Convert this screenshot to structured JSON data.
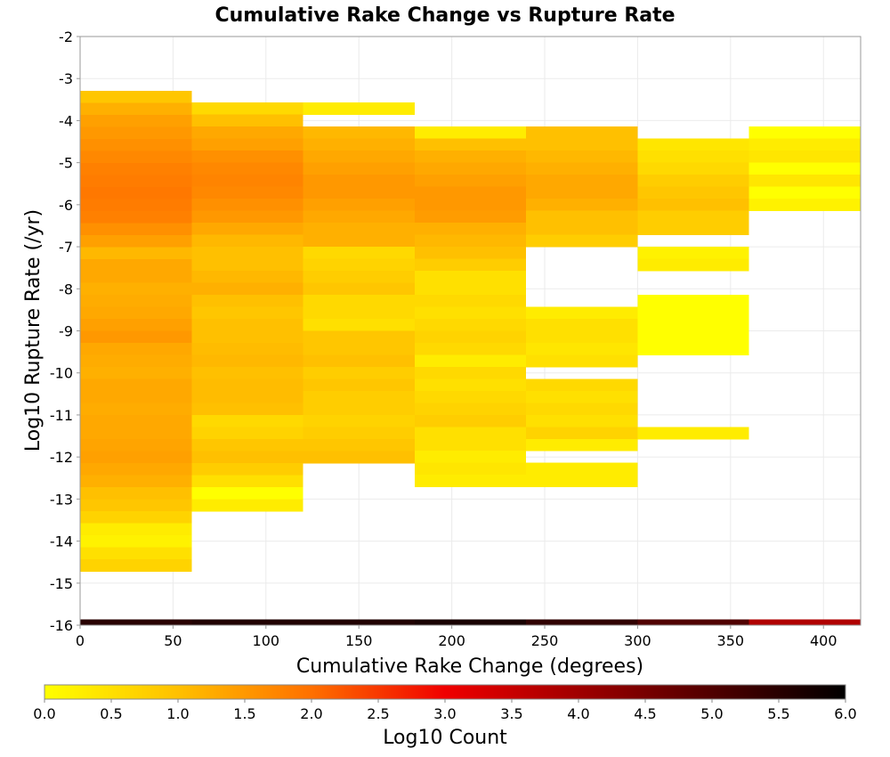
{
  "chart_data": {
    "type": "heatmap",
    "title": "Cumulative Rake Change vs Rupture Rate",
    "xlabel": "Cumulative Rake Change (degrees)",
    "ylabel": "Log10 Rupture Rate (/yr)",
    "xlim": [
      0,
      420
    ],
    "ylim": [
      -16,
      -2
    ],
    "xticks": [
      "0",
      "50",
      "100",
      "150",
      "200",
      "250",
      "300",
      "350",
      "400"
    ],
    "yticks": [
      "-2",
      "-3",
      "-4",
      "-5",
      "-6",
      "-7",
      "-8",
      "-9",
      "-10",
      "-11",
      "-12",
      "-13",
      "-14",
      "-15",
      "-16"
    ],
    "grid": true,
    "x_bin_width": 60,
    "y_bin_height": 0.2857,
    "colorbar": {
      "label": "Log10 Count",
      "range": [
        0,
        6
      ],
      "ticks": [
        "0.0",
        "0.5",
        "1.0",
        "1.5",
        "2.0",
        "2.5",
        "3.0",
        "3.5",
        "4.0",
        "4.5",
        "5.0",
        "5.5",
        "6.0"
      ],
      "colors": [
        "#ffff00",
        "#ffc000",
        "#ff7000",
        "#f00000",
        "#a00000",
        "#500000",
        "#000000"
      ]
    },
    "cells": [
      {
        "x0": 0,
        "y_top": -3.29,
        "values": [
          0.9,
          1.2,
          1.4,
          1.5,
          1.6,
          1.7,
          1.8,
          1.85,
          1.9,
          1.85,
          1.8,
          1.6,
          1.4,
          1.1,
          1.3,
          1.3,
          1.2,
          1.25,
          1.3,
          1.4,
          1.5,
          1.3,
          1.25,
          1.2,
          1.3,
          1.3,
          1.25,
          1.3,
          1.3,
          1.35,
          1.4,
          1.3,
          1.2,
          1.0,
          0.9,
          0.7,
          0.3,
          0.2,
          0.5,
          0.7
        ]
      },
      {
        "x0": 60,
        "y_top": -3.57,
        "values": [
          0.6,
          1.0,
          1.3,
          1.4,
          1.6,
          1.7,
          1.75,
          1.7,
          1.6,
          1.5,
          1.3,
          1.1,
          1.0,
          1.0,
          1.1,
          1.2,
          1.0,
          0.9,
          1.0,
          1.0,
          1.05,
          1.1,
          1.0,
          1.05,
          1.05,
          1.0,
          0.6,
          0.7,
          0.9,
          1.0,
          0.8,
          0.5,
          0.0,
          0.3
        ]
      },
      {
        "x0": 120,
        "y_top": -3.57,
        "values": [
          0.3,
          null,
          1.1,
          1.2,
          1.3,
          1.4,
          1.5,
          1.5,
          1.4,
          1.3,
          1.2,
          1.2,
          0.6,
          0.7,
          0.8,
          0.9,
          0.6,
          0.6,
          0.5,
          0.9,
          0.9,
          1.0,
          0.8,
          0.9,
          0.8,
          0.8,
          0.7,
          0.8,
          0.9,
          1.0
        ]
      },
      {
        "x0": 180,
        "y_top": -4.14,
        "values": [
          0.3,
          1.0,
          1.2,
          1.3,
          1.4,
          1.5,
          1.5,
          1.45,
          1.2,
          1.1,
          1.0,
          0.8,
          0.5,
          0.5,
          0.6,
          0.5,
          0.6,
          0.7,
          0.6,
          0.3,
          0.6,
          0.5,
          0.6,
          0.7,
          0.8,
          0.5,
          0.5,
          0.3,
          0.4,
          0.3
        ]
      },
      {
        "x0": 240,
        "y_top": -4.14,
        "values": [
          1.0,
          1.0,
          1.1,
          1.2,
          1.3,
          1.3,
          1.2,
          1.0,
          1.0,
          0.8,
          null,
          null,
          null,
          null,
          null,
          0.3,
          0.5,
          0.5,
          0.4,
          0.5,
          null,
          0.6,
          0.5,
          0.6,
          0.5,
          0.7,
          0.3,
          null,
          0.3,
          0.3
        ]
      },
      {
        "x0": 300,
        "y_top": -4.43,
        "values": [
          0.4,
          0.5,
          0.6,
          0.8,
          0.9,
          1.0,
          0.8,
          0.8,
          null,
          0.2,
          0.3,
          null,
          null,
          0.0,
          0.0,
          0.0,
          0.0,
          0.0,
          null,
          null,
          null,
          null,
          null,
          null,
          0.3
        ]
      },
      {
        "x0": 360,
        "y_top": -4.14,
        "values": [
          0.0,
          0.3,
          0.4,
          0.0,
          0.4,
          0.0,
          0.2
        ]
      },
      {
        "x0": 0,
        "y_top": -15.86,
        "values": [
          5.5
        ],
        "row": "bottom"
      },
      {
        "x0": 60,
        "y_top": -15.86,
        "values": [
          5.6
        ],
        "row": "bottom"
      },
      {
        "x0": 120,
        "y_top": -15.86,
        "values": [
          5.6
        ],
        "row": "bottom"
      },
      {
        "x0": 180,
        "y_top": -15.86,
        "values": [
          5.7
        ],
        "row": "bottom"
      },
      {
        "x0": 240,
        "y_top": -15.86,
        "values": [
          5.4
        ],
        "row": "bottom"
      },
      {
        "x0": 300,
        "y_top": -15.86,
        "values": [
          5.0
        ],
        "row": "bottom"
      },
      {
        "x0": 360,
        "y_top": -15.86,
        "values": [
          3.8
        ],
        "row": "bottom"
      }
    ]
  }
}
